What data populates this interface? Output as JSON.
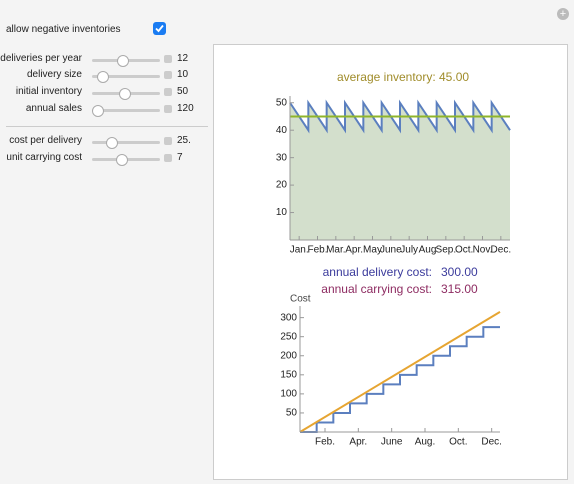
{
  "controls": {
    "checkbox": {
      "label": "allow negative inventories"
    },
    "sliders": [
      {
        "label": "deliveries per year",
        "value": "12"
      },
      {
        "label": "delivery size",
        "value": "10"
      },
      {
        "label": "initial inventory",
        "value": "50"
      },
      {
        "label": "annual sales",
        "value": "120"
      },
      {
        "label": "cost per delivery",
        "value": "25."
      },
      {
        "label": "unit carrying cost",
        "value": "7"
      }
    ]
  },
  "chart_data": [
    {
      "type": "line",
      "title": "average inventory: 45.00",
      "xlim": [
        0,
        12
      ],
      "ylim": [
        0,
        51
      ],
      "yticks": [
        10,
        20,
        30,
        40,
        50
      ],
      "xticks": [
        {
          "value": 0.5,
          "label": "Jan."
        },
        {
          "value": 1.5,
          "label": "Feb."
        },
        {
          "value": 2.5,
          "label": "Mar."
        },
        {
          "value": 3.5,
          "label": "Apr."
        },
        {
          "value": 4.5,
          "label": "May"
        },
        {
          "value": 5.5,
          "label": "June"
        },
        {
          "value": 6.5,
          "label": "July"
        },
        {
          "value": 7.5,
          "label": "Aug"
        },
        {
          "value": 8.5,
          "label": "Sep."
        },
        {
          "value": 9.5,
          "label": "Oct."
        },
        {
          "value": 10.5,
          "label": "Nov."
        },
        {
          "value": 11.5,
          "label": "Dec."
        }
      ],
      "series": [
        {
          "color": "#5b7fbf",
          "fill": "#d3dfcc",
          "x": [
            0,
            1,
            1,
            2,
            2,
            3,
            3,
            4,
            4,
            5,
            5,
            6,
            6,
            7,
            7,
            8,
            8,
            9,
            9,
            10,
            10,
            11,
            11,
            12
          ],
          "values": [
            50,
            40,
            50,
            40,
            50,
            40,
            50,
            40,
            50,
            40,
            50,
            40,
            50,
            40,
            50,
            40,
            50,
            40,
            50,
            40,
            50,
            40,
            50,
            40
          ]
        },
        {
          "color": "#8fb52a",
          "x": [
            0,
            12
          ],
          "values": [
            45,
            45
          ]
        }
      ]
    },
    {
      "type": "line",
      "ylabel": "Cost",
      "annotations": [
        {
          "label": "annual delivery cost:",
          "value": "300.00",
          "color": "#3b3b9c"
        },
        {
          "label": "annual carrying cost:",
          "value": "315.00",
          "color": "#8e2c62"
        }
      ],
      "xlim": [
        0,
        12
      ],
      "ylim": [
        0,
        320
      ],
      "yticks": [
        50,
        100,
        150,
        200,
        250,
        300
      ],
      "xticks": [
        {
          "value": 1.5,
          "label": "Feb."
        },
        {
          "value": 3.5,
          "label": "Apr."
        },
        {
          "value": 5.5,
          "label": "June"
        },
        {
          "value": 7.5,
          "label": "Aug."
        },
        {
          "value": 9.5,
          "label": "Oct."
        },
        {
          "value": 11.5,
          "label": "Dec."
        }
      ],
      "series": [
        {
          "color": "#5b7fbf",
          "x": [
            0,
            1,
            1,
            2,
            2,
            3,
            3,
            4,
            4,
            5,
            5,
            6,
            6,
            7,
            7,
            8,
            8,
            9,
            9,
            10,
            10,
            11,
            11,
            12
          ],
          "values": [
            0,
            0,
            25,
            25,
            50,
            50,
            75,
            75,
            100,
            100,
            125,
            125,
            150,
            150,
            175,
            175,
            200,
            200,
            225,
            225,
            250,
            250,
            275,
            275
          ]
        },
        {
          "color": "#e6a532",
          "x": [
            0,
            12
          ],
          "values": [
            0,
            315
          ]
        }
      ]
    }
  ]
}
